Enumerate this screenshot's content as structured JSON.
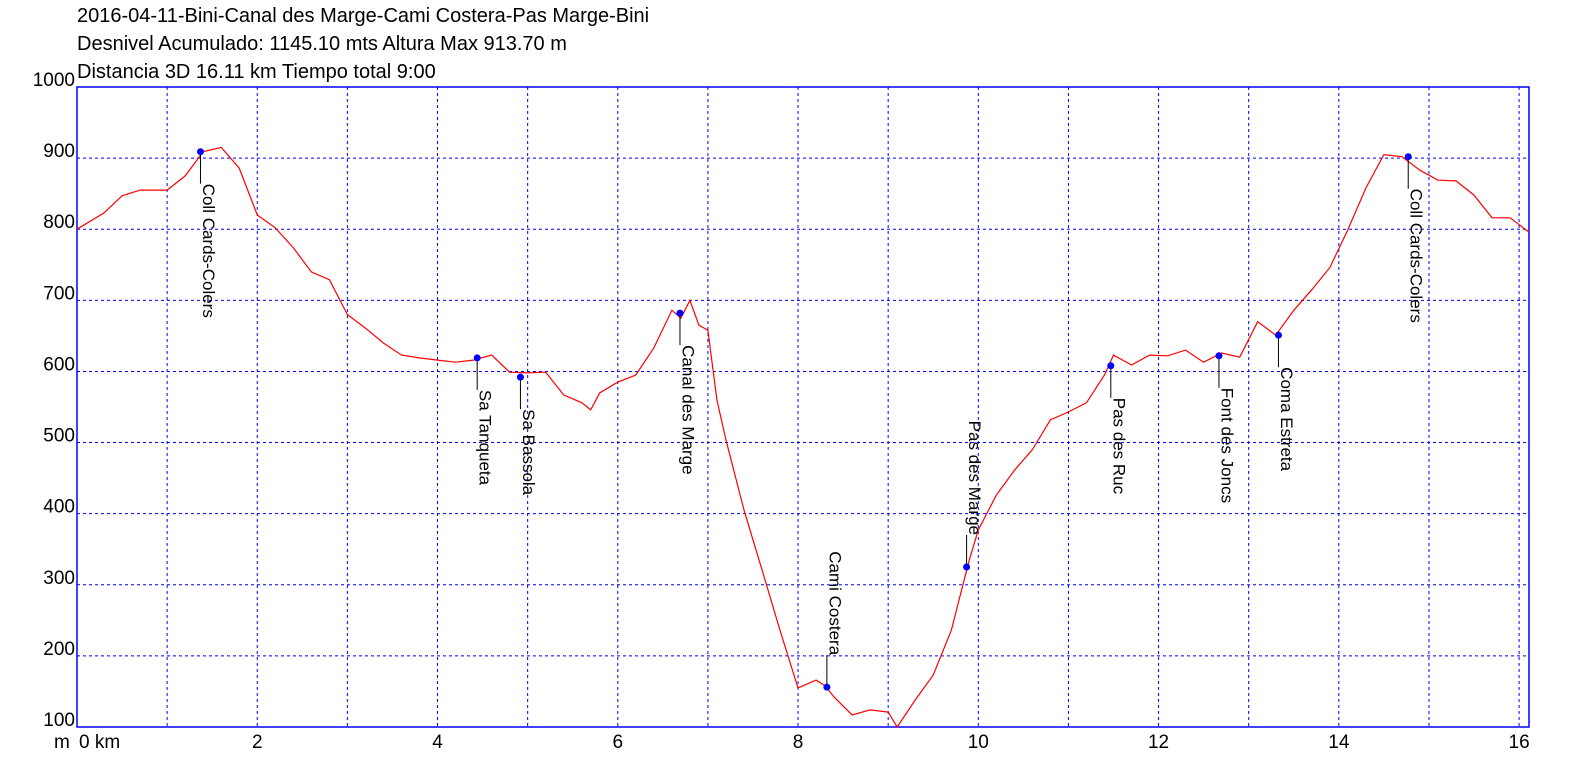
{
  "chart_data": {
    "type": "line",
    "title_lines": [
      "2016-04-11-Bini-Canal des Marge-Cami Costera-Pas Marge-Bini",
      "Desnivel Acumulado: 1145.10 mts  Altura Max 913.70 m",
      "Distancia 3D 16.11 km  Tiempo total 9:00"
    ],
    "ylabel": "m",
    "x": [
      0,
      0.3,
      0.5,
      0.7,
      1.0,
      1.2,
      1.4,
      1.6,
      1.8,
      2.0,
      2.2,
      2.4,
      2.6,
      2.8,
      3.0,
      3.2,
      3.4,
      3.6,
      3.8,
      4.0,
      4.2,
      4.4,
      4.6,
      4.8,
      5.0,
      5.2,
      5.4,
      5.6,
      5.7,
      5.8,
      6.0,
      6.2,
      6.4,
      6.6,
      6.7,
      6.8,
      6.9,
      7.0,
      7.1,
      7.2,
      7.4,
      7.6,
      7.8,
      8.0,
      8.2,
      8.3,
      8.4,
      8.6,
      8.8,
      9.0,
      9.1,
      9.3,
      9.5,
      9.7,
      9.9,
      10.0,
      10.2,
      10.4,
      10.6,
      10.8,
      11.0,
      11.2,
      11.4,
      11.5,
      11.7,
      11.9,
      12.1,
      12.3,
      12.5,
      12.7,
      12.9,
      13.1,
      13.3,
      13.5,
      13.7,
      13.9,
      14.1,
      14.3,
      14.5,
      14.7,
      14.9,
      15.1,
      15.3,
      15.5,
      15.7,
      15.9,
      16.11
    ],
    "values": [
      800,
      823,
      847,
      855,
      855,
      875,
      909,
      915,
      886,
      820,
      802,
      774,
      740,
      729,
      680,
      661,
      640,
      623,
      619,
      616,
      613,
      616,
      623,
      599,
      598,
      599,
      567,
      556,
      546,
      570,
      585,
      595,
      633,
      686,
      675,
      700,
      665,
      658,
      560,
      504,
      405,
      321,
      236,
      155,
      166,
      158,
      142,
      117,
      124,
      121,
      100,
      138,
      173,
      236,
      335,
      377,
      426,
      461,
      490,
      532,
      543,
      556,
      595,
      623,
      609,
      623,
      622,
      630,
      613,
      626,
      620,
      670,
      651,
      686,
      715,
      746,
      799,
      858,
      905,
      902,
      883,
      869,
      868,
      848,
      816,
      816,
      796
    ],
    "color": "#ff0000",
    "waypoints": [
      {
        "name": "Coll Cards-Colers",
        "x": 1.37,
        "y": 909
      },
      {
        "name": "Sa Tanqueta",
        "x": 4.44,
        "y": 619
      },
      {
        "name": "Sa Bassola",
        "x": 4.92,
        "y": 592
      },
      {
        "name": "Canal des Marge",
        "x": 6.69,
        "y": 682
      },
      {
        "name": "Cami Costera",
        "x": 8.32,
        "y": 156
      },
      {
        "name": "Pas des Marge",
        "x": 9.87,
        "y": 325
      },
      {
        "name": "Pas des Ruc",
        "x": 11.47,
        "y": 608
      },
      {
        "name": "Font des Joncs",
        "x": 12.67,
        "y": 622
      },
      {
        "name": "Coma Estreta",
        "x": 13.33,
        "y": 651
      },
      {
        "name": "Coll Cards-Colers",
        "x": 14.77,
        "y": 902
      }
    ],
    "waypoint_color": "#0000ff",
    "xlim": [
      0,
      16.11
    ],
    "ylim": [
      100,
      1000
    ],
    "xticks": [
      {
        "value": 0,
        "label": "0 km"
      },
      2,
      4,
      6,
      8,
      10,
      12,
      14,
      16
    ],
    "xgrid": [
      1,
      2,
      3,
      4,
      5,
      6,
      7,
      8,
      9,
      10,
      11,
      12,
      13,
      14,
      15,
      16
    ],
    "yticks": [
      100,
      200,
      300,
      400,
      500,
      600,
      700,
      800,
      900,
      1000
    ],
    "grid": true
  }
}
